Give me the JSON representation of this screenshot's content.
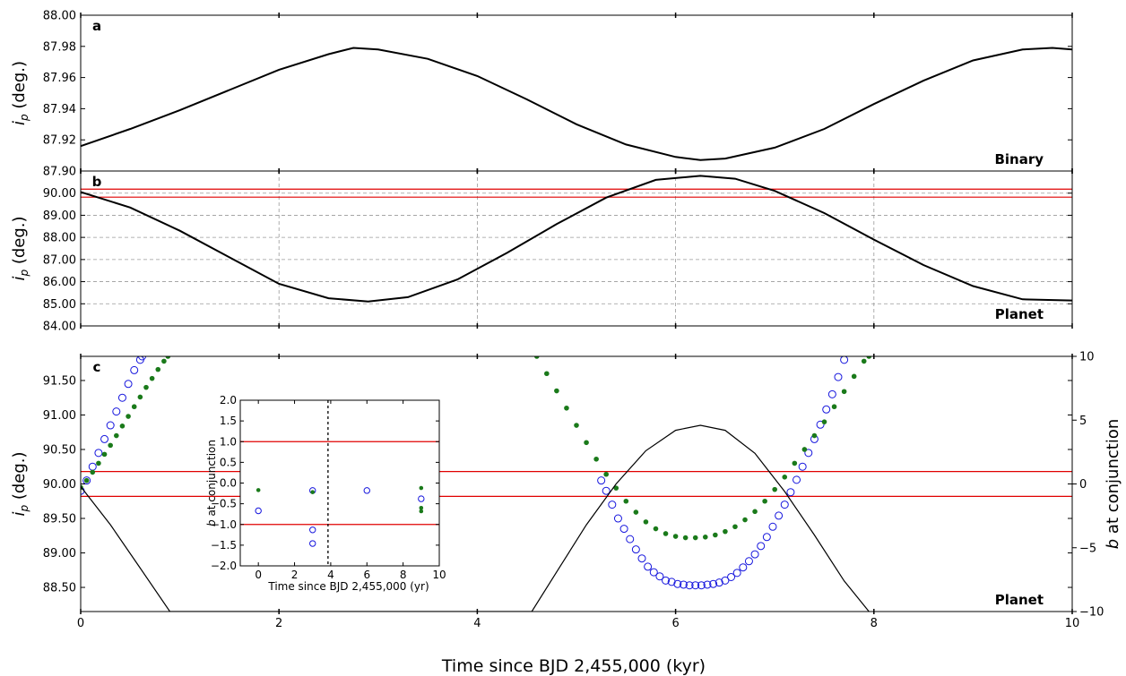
{
  "figure": {
    "xlabel": "Time since BJD 2,455,000 (kyr)",
    "x_ticks": [
      "0",
      "2",
      "4",
      "6",
      "8",
      "10"
    ]
  },
  "chart_data": [
    {
      "panel": "a",
      "type": "line",
      "tag": "Binary",
      "ylabel_var": "i",
      "ylabel_sub": "p",
      "ylabel_unit": " (deg.)",
      "xlim": [
        0,
        10
      ],
      "ylim": [
        87.9,
        88.0
      ],
      "y_ticks": [
        "87.90",
        "87.92",
        "87.94",
        "87.96",
        "87.98",
        "88.00"
      ],
      "grid": false,
      "series": [
        {
          "x": [
            0,
            0.5,
            1,
            1.5,
            2,
            2.5,
            2.75,
            3,
            3.5,
            4,
            4.5,
            5,
            5.5,
            6,
            6.25,
            6.5,
            7,
            7.5,
            8,
            8.5,
            9,
            9.5,
            9.8,
            10
          ],
          "y": [
            87.916,
            87.927,
            87.939,
            87.952,
            87.965,
            87.975,
            87.979,
            87.978,
            87.972,
            87.961,
            87.946,
            87.93,
            87.917,
            87.909,
            87.907,
            87.908,
            87.915,
            87.927,
            87.943,
            87.958,
            87.971,
            87.978,
            87.979,
            87.978
          ]
        }
      ]
    },
    {
      "panel": "b",
      "type": "line",
      "tag": "Planet",
      "ylabel_var": "i",
      "ylabel_sub": "p",
      "ylabel_unit": " (deg.)",
      "xlim": [
        0,
        10
      ],
      "ylim": [
        84.0,
        91.0
      ],
      "y_ticks": [
        "84.00",
        "85.00",
        "86.00",
        "87.00",
        "88.00",
        "89.00",
        "90.00"
      ],
      "grid": true,
      "hlines": [
        90.18,
        89.82
      ],
      "series": [
        {
          "x": [
            0,
            0.5,
            1,
            1.5,
            2,
            2.5,
            2.9,
            3.3,
            3.8,
            4.3,
            4.8,
            5.3,
            5.8,
            6.25,
            6.6,
            7,
            7.5,
            8,
            8.5,
            9,
            9.5,
            10
          ],
          "y": [
            90.05,
            89.35,
            88.3,
            87.1,
            85.9,
            85.25,
            85.1,
            85.3,
            86.1,
            87.3,
            88.6,
            89.8,
            90.6,
            90.78,
            90.65,
            90.1,
            89.1,
            87.9,
            86.75,
            85.8,
            85.2,
            85.15
          ]
        }
      ]
    },
    {
      "panel": "c",
      "type": "scatter",
      "tag": "Planet",
      "ylabel_var": "i",
      "ylabel_sub": "p",
      "ylabel_unit": " (deg.)",
      "y2label_var": "b",
      "y2label_unit": " at conjunction",
      "xlim": [
        0,
        10
      ],
      "ylim": [
        88.15,
        91.85
      ],
      "y_ticks": [
        "88.50",
        "89.00",
        "89.50",
        "90.00",
        "90.50",
        "91.00",
        "91.50"
      ],
      "y2lim": [
        -10,
        10
      ],
      "y2_ticks": [
        "−10",
        "−5",
        "0",
        "5",
        "10"
      ],
      "grid": false,
      "hlines": [
        90.18,
        89.82
      ],
      "series": [
        {
          "color": "#1515dd",
          "marker": "open-circle",
          "x": [
            0,
            0.06,
            0.12,
            0.18,
            0.24,
            0.3,
            0.36,
            0.42,
            0.48,
            0.54,
            0.6,
            0.62,
            5.25,
            5.3,
            5.36,
            5.42,
            5.48,
            5.54,
            5.6,
            5.66,
            5.72,
            5.78,
            5.84,
            5.9,
            5.96,
            6.02,
            6.08,
            6.14,
            6.2,
            6.26,
            6.32,
            6.38,
            6.44,
            6.5,
            6.56,
            6.62,
            6.68,
            6.74,
            6.8,
            6.86,
            6.92,
            6.98,
            7.04,
            7.1,
            7.16,
            7.22,
            7.28,
            7.34,
            7.4,
            7.46,
            7.52,
            7.58,
            7.64,
            7.7
          ],
          "y": [
            89.9,
            90.05,
            90.25,
            90.45,
            90.65,
            90.85,
            91.05,
            91.25,
            91.45,
            91.65,
            91.8,
            91.85,
            90.05,
            89.9,
            89.7,
            89.5,
            89.35,
            89.2,
            89.05,
            88.92,
            88.8,
            88.72,
            88.66,
            88.6,
            88.58,
            88.55,
            88.54,
            88.53,
            88.53,
            88.53,
            88.54,
            88.55,
            88.57,
            88.6,
            88.65,
            88.71,
            88.79,
            88.88,
            88.98,
            89.1,
            89.23,
            89.38,
            89.54,
            89.7,
            89.88,
            90.06,
            90.25,
            90.45,
            90.65,
            90.86,
            91.08,
            91.3,
            91.55,
            91.8
          ]
        },
        {
          "color": "#1a7a1a",
          "marker": "dot",
          "x": [
            0,
            0.06,
            0.12,
            0.18,
            0.24,
            0.3,
            0.36,
            0.42,
            0.48,
            0.54,
            0.6,
            0.66,
            0.72,
            0.78,
            0.84,
            0.88,
            4.6,
            4.7,
            4.8,
            4.9,
            5.0,
            5.1,
            5.2,
            5.3,
            5.4,
            5.5,
            5.6,
            5.7,
            5.8,
            5.9,
            6.0,
            6.1,
            6.2,
            6.3,
            6.4,
            6.5,
            6.6,
            6.7,
            6.8,
            6.9,
            7.0,
            7.1,
            7.2,
            7.3,
            7.4,
            7.5,
            7.6,
            7.7,
            7.8,
            7.9,
            7.95
          ],
          "y": [
            89.95,
            90.05,
            90.17,
            90.3,
            90.43,
            90.56,
            90.7,
            90.84,
            90.98,
            91.12,
            91.26,
            91.4,
            91.53,
            91.66,
            91.78,
            91.85,
            91.85,
            91.6,
            91.35,
            91.1,
            90.85,
            90.6,
            90.36,
            90.14,
            89.94,
            89.75,
            89.59,
            89.45,
            89.35,
            89.28,
            89.24,
            89.22,
            89.22,
            89.23,
            89.26,
            89.31,
            89.38,
            89.48,
            89.6,
            89.75,
            89.92,
            90.1,
            90.3,
            90.5,
            90.7,
            90.9,
            91.12,
            91.34,
            91.56,
            91.78,
            91.85
          ]
        },
        {
          "color": "#000000",
          "marker": "line",
          "axis": "y2",
          "x": [
            0,
            0.3,
            0.6,
            0.9,
            4.55,
            4.8,
            5.1,
            5.4,
            5.7,
            6.0,
            6.25,
            6.5,
            6.8,
            7.1,
            7.4,
            7.7,
            7.95
          ],
          "y": [
            -0.2,
            -3.2,
            -6.6,
            -10.0,
            -10.0,
            -6.9,
            -3.2,
            0.0,
            2.6,
            4.2,
            4.6,
            4.2,
            2.4,
            -0.6,
            -4.0,
            -7.6,
            -10.0
          ]
        }
      ]
    },
    {
      "panel": "c-inset",
      "type": "scatter",
      "xlabel": "Time since BJD 2,455,000 (yr)",
      "ylabel_var": "b",
      "ylabel_unit": " at conjunction",
      "xlim": [
        -1,
        10
      ],
      "ylim": [
        -2.0,
        2.0
      ],
      "x_ticks": [
        "0",
        "2",
        "4",
        "6",
        "8",
        "10"
      ],
      "y_ticks": [
        "−2.0",
        "−1.5",
        "−1.0",
        "−0.5",
        "0.0",
        "0.5",
        "1.0",
        "1.5",
        "2.0"
      ],
      "hlines": [
        1.0,
        -1.0
      ],
      "vline": 3.85,
      "series": [
        {
          "color": "#1515dd",
          "marker": "open-circle",
          "x": [
            0,
            3,
            3,
            3,
            6,
            9
          ],
          "y": [
            -0.67,
            -0.18,
            -1.13,
            -1.46,
            -0.18,
            -0.38
          ]
        },
        {
          "color": "#1a7a1a",
          "marker": "dot",
          "x": [
            0,
            3,
            9,
            9,
            9
          ],
          "y": [
            -0.17,
            -0.22,
            -0.12,
            -0.6,
            -0.68
          ]
        }
      ]
    }
  ]
}
